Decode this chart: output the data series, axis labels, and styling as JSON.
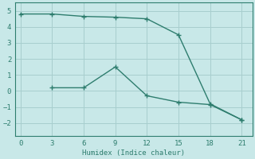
{
  "xlabel": "Humidex (Indice chaleur)",
  "line1_x": [
    0,
    3,
    6,
    9,
    12,
    15,
    18,
    21
  ],
  "line1_y": [
    4.8,
    4.8,
    4.65,
    4.6,
    4.5,
    3.5,
    -0.8,
    -1.8
  ],
  "line2_x": [
    3,
    6,
    9,
    12,
    15,
    18,
    21
  ],
  "line2_y": [
    0.2,
    0.2,
    1.5,
    -0.3,
    -0.7,
    -0.85,
    -1.8
  ],
  "color": "#2e7d6e",
  "bg_color": "#c8e8e8",
  "grid_color": "#a8cece",
  "xlim": [
    -0.5,
    22
  ],
  "ylim": [
    -2.8,
    5.5
  ],
  "xticks": [
    0,
    3,
    6,
    9,
    12,
    15,
    18,
    21
  ],
  "yticks": [
    -2,
    -1,
    0,
    1,
    2,
    3,
    4,
    5
  ],
  "marker": "+",
  "markersize": 4,
  "linewidth": 1.0,
  "tick_fontsize": 6.5,
  "xlabel_fontsize": 6.5
}
